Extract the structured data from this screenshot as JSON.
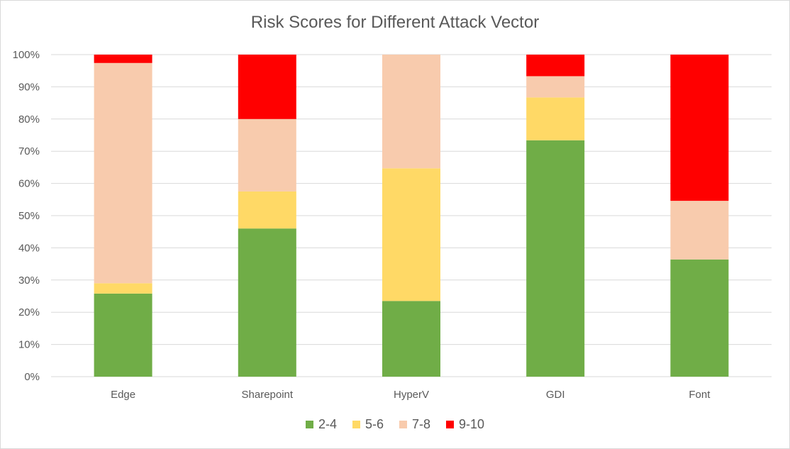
{
  "chart_data": {
    "type": "bar",
    "stacked": "percent",
    "title": "Risk Scores for Different Attack Vector",
    "categories": [
      "Edge",
      "Sharepoint",
      "HyperV",
      "GDI",
      "Font"
    ],
    "series": [
      {
        "name": "2-4",
        "color": "#70ad47",
        "values": [
          25.8,
          46.0,
          23.5,
          73.4,
          36.4
        ]
      },
      {
        "name": "5-6",
        "color": "#ffd966",
        "values": [
          3.2,
          11.5,
          41.2,
          13.3,
          0
        ]
      },
      {
        "name": "7-8",
        "color": "#f8cbad",
        "values": [
          68.4,
          22.5,
          35.3,
          6.6,
          18.2
        ]
      },
      {
        "name": "9-10",
        "color": "#ff0000",
        "values": [
          2.6,
          20.0,
          0,
          6.7,
          45.4
        ]
      }
    ],
    "ylim": [
      0,
      100
    ],
    "yticks": [
      "0%",
      "10%",
      "20%",
      "30%",
      "40%",
      "50%",
      "60%",
      "70%",
      "80%",
      "90%",
      "100%"
    ],
    "grid": true,
    "legend_position": "bottom"
  }
}
